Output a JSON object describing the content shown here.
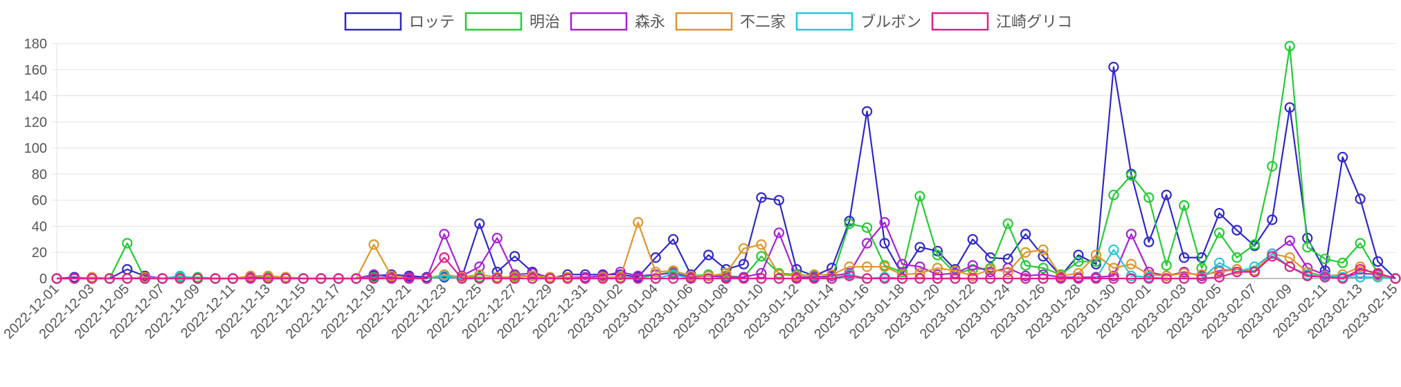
{
  "chart_data": {
    "type": "line",
    "title": "",
    "xlabel": "",
    "ylabel": "",
    "ylim": [
      0,
      180
    ],
    "yticks": [
      0,
      20,
      40,
      60,
      80,
      100,
      120,
      140,
      160,
      180
    ],
    "grid": true,
    "legend_position": "top",
    "x": [
      "2022-12-01",
      "2022-12-02",
      "2022-12-03",
      "2022-12-04",
      "2022-12-05",
      "2022-12-06",
      "2022-12-07",
      "2022-12-08",
      "2022-12-09",
      "2022-12-10",
      "2022-12-11",
      "2022-12-12",
      "2022-12-13",
      "2022-12-14",
      "2022-12-15",
      "2022-12-16",
      "2022-12-17",
      "2022-12-18",
      "2022-12-19",
      "2022-12-20",
      "2022-12-21",
      "2022-12-22",
      "2022-12-23",
      "2022-12-24",
      "2022-12-25",
      "2022-12-26",
      "2022-12-27",
      "2022-12-28",
      "2022-12-29",
      "2022-12-30",
      "2022-12-31",
      "2023-01-01",
      "2023-01-02",
      "2023-01-03",
      "2023-01-04",
      "2023-01-05",
      "2023-01-06",
      "2023-01-07",
      "2023-01-08",
      "2023-01-09",
      "2023-01-10",
      "2023-01-11",
      "2023-01-12",
      "2023-01-13",
      "2023-01-14",
      "2023-01-15",
      "2023-01-16",
      "2023-01-17",
      "2023-01-18",
      "2023-01-19",
      "2023-01-20",
      "2023-01-21",
      "2023-01-22",
      "2023-01-23",
      "2023-01-24",
      "2023-01-25",
      "2023-01-26",
      "2023-01-27",
      "2023-01-28",
      "2023-01-29",
      "2023-01-30",
      "2023-01-31",
      "2023-02-01",
      "2023-02-02",
      "2023-02-03",
      "2023-02-04",
      "2023-02-05",
      "2023-02-06",
      "2023-02-07",
      "2023-02-08",
      "2023-02-09",
      "2023-02-10",
      "2023-02-11",
      "2023-02-12",
      "2023-02-13",
      "2023-02-14",
      "2023-02-15"
    ],
    "x_tick_labels": [
      "2022-12-01",
      "2022-12-03",
      "2022-12-05",
      "2022-12-07",
      "2022-12-09",
      "2022-12-11",
      "2022-12-13",
      "2022-12-15",
      "2022-12-17",
      "2022-12-19",
      "2022-12-21",
      "2022-12-23",
      "2022-12-25",
      "2022-12-27",
      "2022-12-29",
      "2022-12-31",
      "2023-01-02",
      "2023-01-04",
      "2023-01-06",
      "2023-01-08",
      "2023-01-10",
      "2023-01-12",
      "2023-01-14",
      "2023-01-16",
      "2023-01-18",
      "2023-01-20",
      "2023-01-22",
      "2023-01-24",
      "2023-01-26",
      "2023-01-28",
      "2023-01-30",
      "2023-02-01",
      "2023-02-03",
      "2023-02-05",
      "2023-02-07",
      "2023-02-09",
      "2023-02-11",
      "2023-02-13",
      "2023-02-15"
    ],
    "series": [
      {
        "name": "ロッテ",
        "color": "#2f27c8",
        "values": [
          0,
          1,
          0,
          0,
          7,
          2,
          0,
          1,
          0,
          0,
          0,
          1,
          1,
          1,
          0,
          0,
          0,
          0,
          2,
          3,
          2,
          1,
          1,
          1,
          42,
          5,
          17,
          5,
          0,
          3,
          3,
          3,
          3,
          1,
          16,
          30,
          3,
          18,
          7,
          11,
          62,
          60,
          7,
          2,
          8,
          44,
          128,
          27,
          3,
          24,
          21,
          7,
          30,
          16,
          15,
          34,
          17,
          2,
          18,
          11,
          162,
          80,
          28,
          64,
          16,
          16,
          50,
          37,
          25,
          45,
          131,
          31,
          6,
          93,
          61,
          13,
          0
        ]
      },
      {
        "name": "明治",
        "color": "#22cc33",
        "values": [
          0,
          0,
          0,
          0,
          27,
          0,
          0,
          1,
          1,
          0,
          0,
          1,
          1,
          1,
          0,
          0,
          0,
          0,
          1,
          0,
          0,
          0,
          2,
          1,
          1,
          0,
          2,
          2,
          0,
          0,
          0,
          0,
          1,
          0,
          3,
          5,
          2,
          3,
          2,
          1,
          17,
          4,
          3,
          2,
          0,
          42,
          39,
          10,
          5,
          63,
          18,
          4,
          7,
          8,
          42,
          10,
          8,
          3,
          13,
          13,
          64,
          79,
          62,
          10,
          56,
          8,
          35,
          16,
          26,
          86,
          178,
          24,
          15,
          12,
          27,
          4,
          0
        ]
      },
      {
        "name": "森永",
        "color": "#a820d8",
        "values": [
          0,
          0,
          0,
          0,
          0,
          1,
          0,
          0,
          0,
          0,
          0,
          1,
          0,
          0,
          0,
          0,
          0,
          0,
          3,
          1,
          1,
          0,
          34,
          2,
          9,
          31,
          3,
          4,
          1,
          1,
          1,
          2,
          5,
          2,
          3,
          4,
          1,
          2,
          1,
          1,
          4,
          35,
          1,
          1,
          2,
          4,
          27,
          43,
          11,
          9,
          3,
          4,
          10,
          5,
          8,
          2,
          3,
          1,
          1,
          1,
          2,
          34,
          5,
          2,
          5,
          2,
          6,
          7,
          5,
          19,
          29,
          8,
          3,
          1,
          4,
          3,
          0
        ]
      },
      {
        "name": "不二家",
        "color": "#e0952a",
        "values": [
          0,
          0,
          1,
          0,
          0,
          1,
          0,
          0,
          0,
          0,
          0,
          2,
          2,
          1,
          0,
          0,
          0,
          0,
          26,
          2,
          0,
          0,
          3,
          1,
          3,
          1,
          1,
          2,
          1,
          1,
          0,
          1,
          1,
          43,
          5,
          6,
          2,
          2,
          4,
          23,
          26,
          3,
          2,
          3,
          3,
          9,
          9,
          9,
          3,
          4,
          8,
          6,
          2,
          7,
          5,
          20,
          22,
          2,
          4,
          18,
          8,
          11,
          3,
          2,
          4,
          3,
          5,
          7,
          6,
          19,
          16,
          5,
          2,
          3,
          9,
          2,
          0
        ]
      },
      {
        "name": "ブルボン",
        "color": "#22c8d8",
        "values": [
          0,
          0,
          0,
          0,
          0,
          0,
          0,
          2,
          0,
          0,
          0,
          0,
          0,
          0,
          0,
          0,
          0,
          0,
          0,
          0,
          0,
          0,
          2,
          0,
          0,
          0,
          0,
          0,
          0,
          0,
          0,
          0,
          0,
          0,
          0,
          3,
          0,
          0,
          0,
          0,
          0,
          0,
          0,
          0,
          0,
          3,
          0,
          1,
          0,
          0,
          0,
          0,
          0,
          0,
          0,
          0,
          0,
          0,
          0,
          0,
          22,
          2,
          1,
          0,
          0,
          0,
          12,
          5,
          9,
          19,
          9,
          3,
          2,
          1,
          1,
          1,
          0
        ]
      },
      {
        "name": "江崎グリコ",
        "color": "#e0208c",
        "values": [
          0,
          0,
          0,
          0,
          0,
          0,
          0,
          0,
          0,
          0,
          0,
          0,
          0,
          0,
          0,
          0,
          0,
          0,
          0,
          0,
          0,
          0,
          16,
          0,
          0,
          0,
          0,
          0,
          0,
          0,
          0,
          0,
          0,
          0,
          0,
          0,
          0,
          0,
          0,
          0,
          0,
          0,
          0,
          0,
          0,
          2,
          0,
          0,
          0,
          0,
          0,
          0,
          0,
          0,
          0,
          0,
          0,
          0,
          0,
          0,
          0,
          0,
          0,
          0,
          0,
          0,
          1,
          5,
          5,
          17,
          9,
          2,
          1,
          0,
          7,
          4,
          0
        ]
      }
    ]
  }
}
